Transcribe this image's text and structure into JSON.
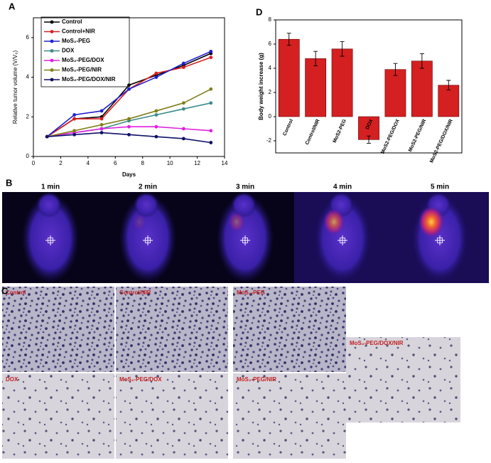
{
  "chart_data": [
    {
      "type": "line",
      "panel_label": "A",
      "x_label": "Days",
      "y_label": "Relative tumor volume (V/V₀)",
      "x": [
        1,
        3,
        5,
        7,
        9,
        11,
        13
      ],
      "series": [
        {
          "name": "Control",
          "color": "#000000",
          "values": [
            1,
            1.9,
            2.0,
            3.6,
            4.1,
            4.6,
            5.2
          ]
        },
        {
          "name": "Control+NIR",
          "color": "#d62020",
          "values": [
            1,
            1.9,
            1.9,
            3.4,
            4.2,
            4.5,
            5.0
          ]
        },
        {
          "name": "MoS₂-PEG",
          "color": "#2020d0",
          "values": [
            1,
            2.1,
            2.3,
            3.4,
            4.0,
            4.7,
            5.3
          ]
        },
        {
          "name": "DOX",
          "color": "#3a8a8a",
          "values": [
            1,
            1.2,
            1.4,
            1.8,
            2.1,
            2.4,
            2.7
          ]
        },
        {
          "name": "MoS₂-PEG/DOX",
          "color": "#e020e0",
          "values": [
            1,
            1.2,
            1.4,
            1.5,
            1.5,
            1.4,
            1.3
          ]
        },
        {
          "name": "MoS₂-PEG/NIR",
          "color": "#80801a",
          "values": [
            1,
            1.3,
            1.6,
            1.9,
            2.3,
            2.7,
            3.4
          ]
        },
        {
          "name": "MoS₂-PEG/DOX/NIR",
          "color": "#10106a",
          "values": [
            1,
            1.1,
            1.2,
            1.1,
            1.0,
            0.9,
            0.7
          ]
        }
      ],
      "xlim": [
        0,
        14
      ],
      "xticks": [
        0,
        2,
        4,
        6,
        8,
        10,
        12,
        14
      ],
      "ylim": [
        0,
        7
      ],
      "yticks": [
        0,
        2,
        4,
        6
      ]
    },
    {
      "type": "bar",
      "panel_label": "D",
      "y_label": "Body weight increase (g)",
      "categories": [
        "Control",
        "Control/NIR",
        "MoS2-PEG",
        "DOX",
        "MoS2-PEG/DOX",
        "MoS2-PEG/NIR",
        "MoS2-PEG/DOX/NIR"
      ],
      "values": [
        6.4,
        4.8,
        5.6,
        -1.9,
        3.9,
        4.6,
        2.6
      ],
      "errors": [
        0.5,
        0.6,
        0.6,
        0.3,
        0.5,
        0.6,
        0.4
      ],
      "color": "#d42020",
      "ylim": [
        -3,
        8
      ],
      "yticks": [
        -2,
        0,
        2,
        4,
        6,
        8
      ]
    }
  ],
  "panel_b": {
    "label": "B",
    "times": [
      "1 min",
      "2 min",
      "3 min",
      "4 min",
      "5 min"
    ]
  },
  "panel_c": {
    "label": "C",
    "images": [
      "Control",
      "Control/NIR",
      "MoS₂-PEG",
      "DOX",
      "MoS₂-PEG/DOX",
      "MoS₂-PEG/NIR",
      "MoS₂-PEG/DOX/NIR"
    ]
  }
}
